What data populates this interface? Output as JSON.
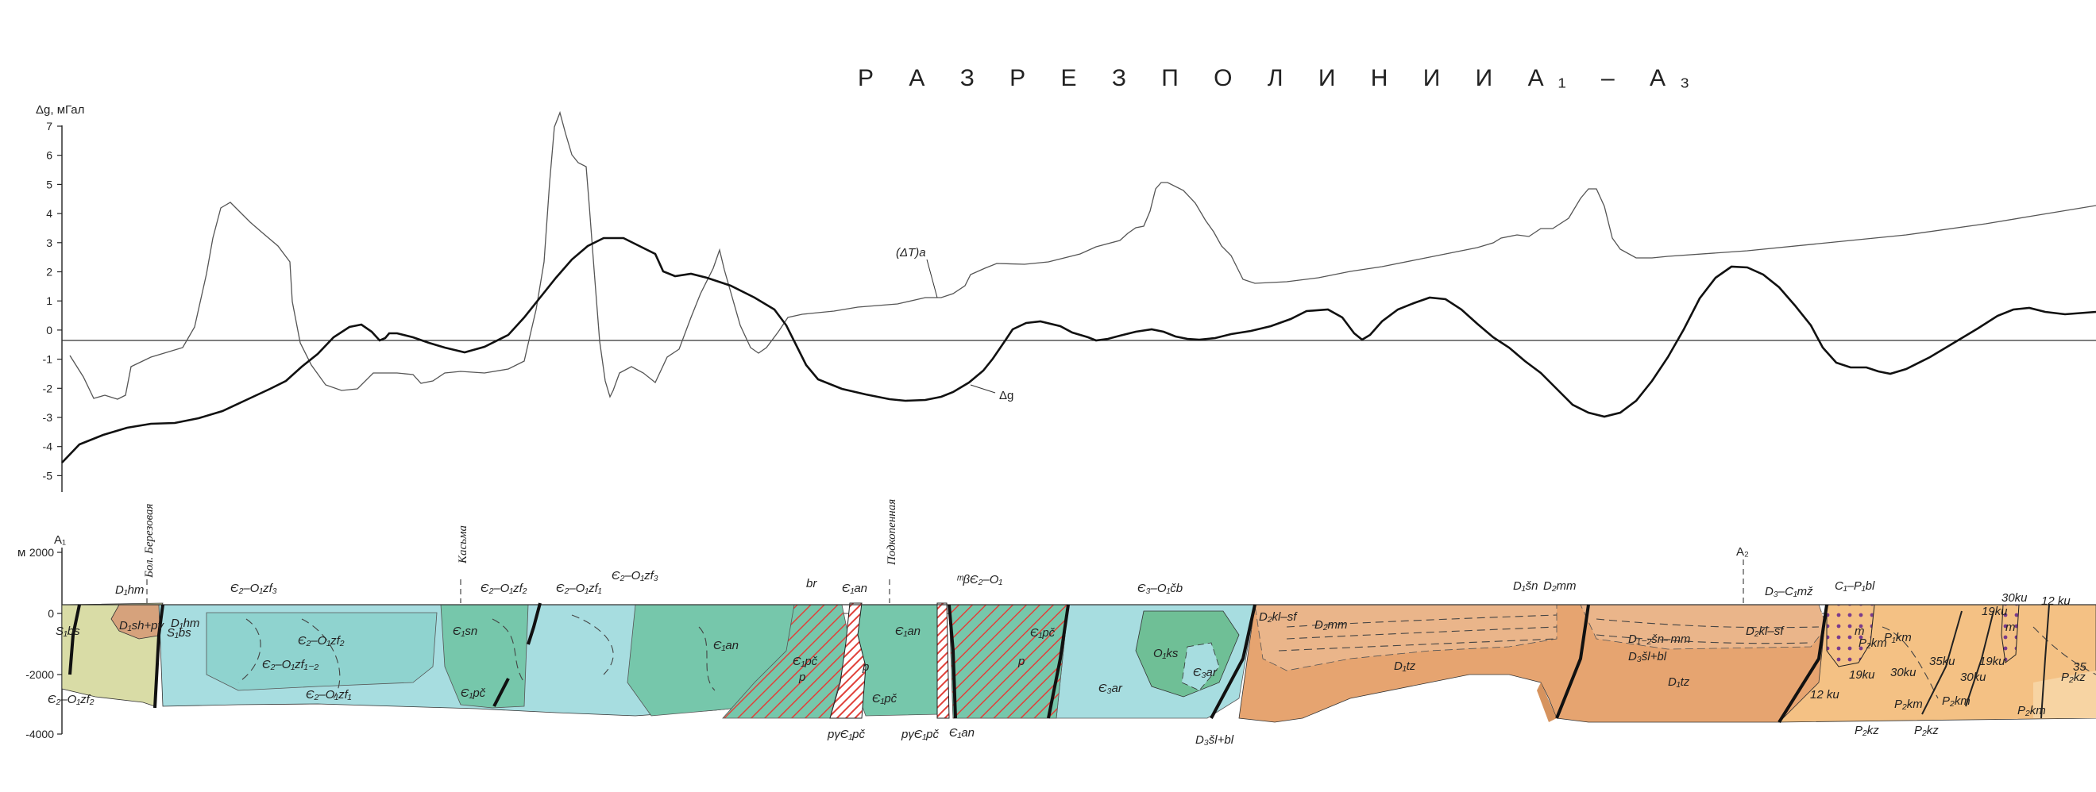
{
  "title": "Р А З Р Е З   П О   Л И Н И И   А₁ – А₃",
  "gravity_axis": {
    "label": "Δg, мГал",
    "ticks": [
      "7",
      "6",
      "5",
      "4",
      "3",
      "2",
      "1",
      "0",
      "-1",
      "-2",
      "-3",
      "-4",
      "-5"
    ]
  },
  "curve_labels": {
    "magnetic": "(ΔT)a",
    "gravity": "Δg"
  },
  "depth_axis": {
    "unit": "м",
    "ticks": [
      "2000",
      "0",
      "-2000",
      "-4000"
    ]
  },
  "profile_points": {
    "start": "A₁",
    "mid": "A₂"
  },
  "locality_names": [
    "Бол. Березовая",
    "Касьма",
    "Подкопенная"
  ],
  "colors": {
    "gravity_curve": "#111111",
    "magnetic_curve": "#555555",
    "silurian": "#d9dca6",
    "devonian_brown": "#d6a27c",
    "cambrian_light": "#a7dde0",
    "cambrian_mid": "#8fd3cf",
    "cambrian_green": "#76c7ab",
    "ordovician_green": "#6fbf96",
    "devonian_orange": "#e6a470",
    "permian_orange": "#f4c184",
    "intrusive_red": "#e0413a",
    "sediment_blue": "#bfe6ea"
  },
  "geology_labels": [
    "D₁hm",
    "D₁sh+pv",
    "S₁bs",
    "S₁bs",
    "D₁hm",
    "Є₂–O₁zf₂",
    "Є₂–O₁zf₃",
    "Є₂–O₁zf₁₋₂",
    "Є₂–O₁zf₂",
    "Є₂–O₁zf₁",
    "Є₂–O₁zf₃",
    "Є₁sn",
    "Є₁pč",
    "Є₂–O₁zf₂",
    "Є₂–O₁zf₁",
    "br",
    "Є₁an",
    "Є₁pč",
    "p",
    "p",
    "Є₁an",
    "Є₁an",
    "Є₁pč",
    "pγЄ₁pč",
    "pγЄ₁pč",
    "Є₁an",
    "ᵐβЄ₂–O₁",
    "Є₁pč",
    "p",
    "Є₃–O₁čb",
    "O₁ks",
    "Є₃ar",
    "Є₃ar",
    "D₃šl+bl",
    "D₂kl–sf",
    "D₂mm",
    "D₁tz",
    "D₁šn",
    "D₂mm",
    "D₁₋₂šn–mm",
    "D₃šl+bl",
    "D₂kl–sf",
    "D₁tz",
    "D₃–C₁mž",
    "C₁–P₁bl",
    "m",
    "P₂km",
    "P₁km",
    "P₂kz",
    "12 ku",
    "19ku",
    "30ku",
    "35ku",
    "P₂km",
    "P₂km",
    "30ku",
    "19ku",
    "12 ku",
    "35",
    "19ku",
    "30ku",
    "P₂kz",
    "P₂km",
    "P₂kz",
    "m"
  ]
}
